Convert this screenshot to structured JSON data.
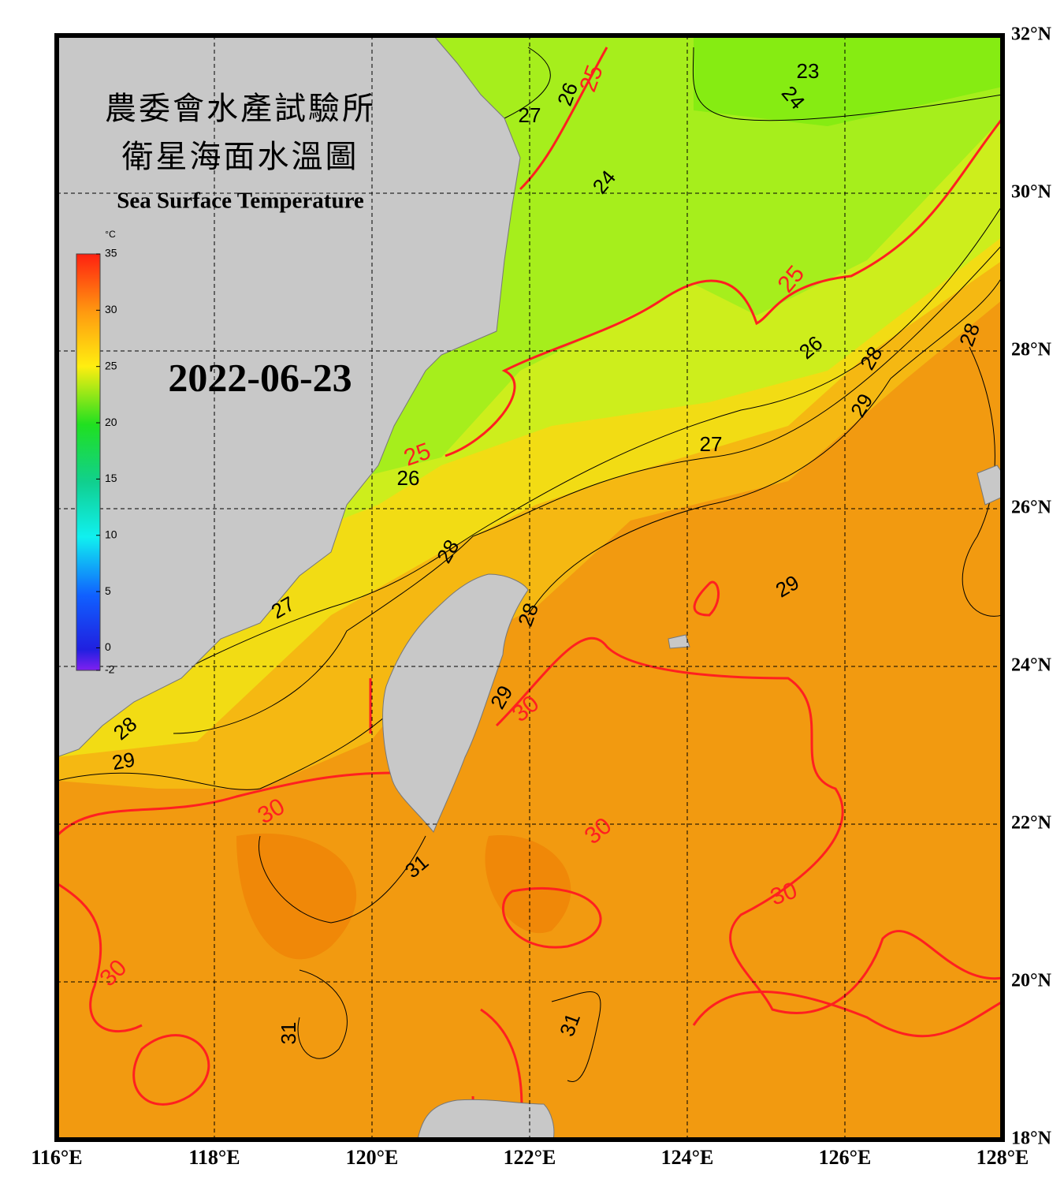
{
  "title": [
    "農委會水產試驗所",
    "衛星海面水溫圖"
  ],
  "subtitle": "Sea Surface Temperature",
  "date": "2022-06-23",
  "colorbar": {
    "unit": "°C",
    "range": [
      -2,
      35
    ],
    "ticks": [
      35,
      30,
      25,
      20,
      15,
      10,
      5,
      0,
      -2
    ]
  },
  "longitudes": [
    {
      "value": 116,
      "label": "116°E"
    },
    {
      "value": 118,
      "label": "118°E"
    },
    {
      "value": 120,
      "label": "120°E"
    },
    {
      "value": 122,
      "label": "122°E"
    },
    {
      "value": 124,
      "label": "124°E"
    },
    {
      "value": 126,
      "label": "126°E"
    },
    {
      "value": 128,
      "label": "128°E"
    }
  ],
  "latitudes": [
    {
      "value": 32,
      "label": "32°N"
    },
    {
      "value": 30,
      "label": "30°N"
    },
    {
      "value": 28,
      "label": "28°N"
    },
    {
      "value": 26,
      "label": "26°N"
    },
    {
      "value": 24,
      "label": "24°N"
    },
    {
      "value": 22,
      "label": "22°N"
    },
    {
      "value": 20,
      "label": "20°N"
    },
    {
      "value": 18,
      "label": "18°N"
    }
  ],
  "contour_labels": [
    {
      "label": "23",
      "color": "#000000"
    },
    {
      "label": "24",
      "color": "#000000"
    },
    {
      "label": "26",
      "color": "#000000"
    },
    {
      "label": "25",
      "color": "#ff2020"
    },
    {
      "label": "27",
      "color": "#000000"
    },
    {
      "label": "24",
      "color": "#000000"
    },
    {
      "label": "25",
      "color": "#ff2020"
    },
    {
      "label": "26",
      "color": "#000000"
    },
    {
      "label": "28",
      "color": "#000000"
    },
    {
      "label": "28",
      "color": "#000000"
    },
    {
      "label": "29",
      "color": "#000000"
    },
    {
      "label": "27",
      "color": "#000000"
    },
    {
      "label": "25",
      "color": "#ff2020"
    },
    {
      "label": "26",
      "color": "#000000"
    },
    {
      "label": "28",
      "color": "#000000"
    },
    {
      "label": "28",
      "color": "#000000"
    },
    {
      "label": "29",
      "color": "#000000"
    },
    {
      "label": "27",
      "color": "#000000"
    },
    {
      "label": "29",
      "color": "#000000"
    },
    {
      "label": "30",
      "color": "#ff2020"
    },
    {
      "label": "28",
      "color": "#000000"
    },
    {
      "label": "29",
      "color": "#000000"
    },
    {
      "label": "30",
      "color": "#ff2020"
    },
    {
      "label": "31",
      "color": "#000000"
    },
    {
      "label": "30",
      "color": "#ff2020"
    },
    {
      "label": "30",
      "color": "#ff2020"
    },
    {
      "label": "30",
      "color": "#ff2020"
    },
    {
      "label": "31",
      "color": "#000000"
    },
    {
      "label": "31",
      "color": "#000000"
    }
  ]
}
